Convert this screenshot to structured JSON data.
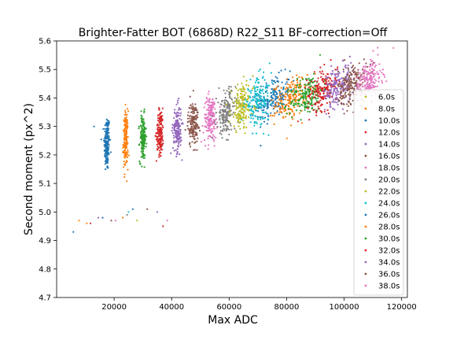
{
  "chart_data": {
    "type": "scatter",
    "title": "Brighter-Fatter BOT (6868D) R22_S11 BF-correction=Off",
    "xlabel": "Max ADC",
    "ylabel": "Second moment (px^2)",
    "xlim": [
      0,
      122000
    ],
    "ylim": [
      4.7,
      5.6
    ],
    "xticks": [
      20000,
      40000,
      60000,
      80000,
      100000,
      120000
    ],
    "xtick_labels": [
      "20000",
      "40000",
      "60000",
      "80000",
      "100000",
      "120000"
    ],
    "yticks": [
      4.7,
      4.8,
      4.9,
      5.0,
      5.1,
      5.2,
      5.3,
      5.4,
      5.5,
      5.6
    ],
    "ytick_labels": [
      "4.7",
      "4.8",
      "4.9",
      "5.0",
      "5.1",
      "5.2",
      "5.3",
      "5.4",
      "5.5",
      "5.6"
    ],
    "grid": false,
    "legend_position": "right",
    "series": [
      {
        "name": "6.0s",
        "color": "#bcbd22",
        "clusters": [],
        "outliers": []
      },
      {
        "name": "8.0s",
        "color": "#ff7f0e",
        "clusters": [],
        "outliers": [
          [
            7800,
            4.97
          ],
          [
            10500,
            4.96
          ],
          [
            23000,
            4.98
          ]
        ]
      },
      {
        "name": "10.0s",
        "color": "#1f77b4",
        "clusters": [
          {
            "x": 17500,
            "xs": 700,
            "y": 5.24,
            "ys": 0.05,
            "n": 170
          }
        ],
        "outliers": [
          [
            5800,
            4.93
          ],
          [
            13000,
            5.3
          ],
          [
            16000,
            4.98
          ]
        ]
      },
      {
        "name": "12.0s",
        "color": "#d62728",
        "clusters": [],
        "outliers": [
          [
            11800,
            4.96
          ],
          [
            37000,
            4.95
          ]
        ]
      },
      {
        "name": "14.0s",
        "color": "#9467bd",
        "clusters": [],
        "outliers": [
          [
            14500,
            4.98
          ],
          [
            35000,
            5.0
          ]
        ]
      },
      {
        "name": "16.0s",
        "color": "#8c564b",
        "clusters": [],
        "outliers": [
          [
            19000,
            4.97
          ],
          [
            31500,
            5.01
          ]
        ]
      },
      {
        "name": "18.0s",
        "color": "#e377c2",
        "clusters": [],
        "outliers": [
          [
            20500,
            4.97
          ],
          [
            38500,
            4.97
          ]
        ]
      },
      {
        "name": "20.0s",
        "color": "#7f7f7f",
        "clusters": [],
        "outliers": [
          [
            24500,
            4.99
          ]
        ]
      },
      {
        "name": "22.0s",
        "color": "#bcbd22",
        "clusters": [],
        "outliers": [
          [
            28000,
            4.97
          ]
        ]
      },
      {
        "name": "24.0s",
        "color": "#17becf",
        "clusters": [],
        "outliers": [
          [
            25000,
            5.0
          ]
        ]
      },
      {
        "name": "26.0s",
        "color": "#1f77b4",
        "clusters": [
          {
            "x": 75500,
            "xs": 4200,
            "y": 5.4,
            "ys": 0.035,
            "n": 180
          }
        ],
        "outliers": [
          [
            26500,
            5.01
          ]
        ]
      },
      {
        "name": "28.0s",
        "color": "#ff7f0e",
        "clusters": [
          {
            "x": 24000,
            "xs": 600,
            "y": 5.25,
            "ys": 0.05,
            "n": 160
          },
          {
            "x": 81500,
            "xs": 4000,
            "y": 5.4,
            "ys": 0.035,
            "n": 180
          }
        ],
        "outliers": []
      },
      {
        "name": "30.0s",
        "color": "#2ca02c",
        "clusters": [
          {
            "x": 30000,
            "xs": 800,
            "y": 5.26,
            "ys": 0.04,
            "n": 160
          },
          {
            "x": 87000,
            "xs": 4000,
            "y": 5.41,
            "ys": 0.035,
            "n": 180
          }
        ],
        "outliers": []
      },
      {
        "name": "32.0s",
        "color": "#d62728",
        "clusters": [
          {
            "x": 36000,
            "xs": 900,
            "y": 5.28,
            "ys": 0.04,
            "n": 160
          },
          {
            "x": 92500,
            "xs": 3800,
            "y": 5.43,
            "ys": 0.035,
            "n": 180
          }
        ],
        "outliers": []
      },
      {
        "name": "34.0s",
        "color": "#9467bd",
        "clusters": [
          {
            "x": 42000,
            "xs": 1100,
            "y": 5.29,
            "ys": 0.04,
            "n": 160
          },
          {
            "x": 98000,
            "xs": 3800,
            "y": 5.44,
            "ys": 0.035,
            "n": 180
          }
        ],
        "outliers": []
      },
      {
        "name": "36.0s",
        "color": "#8c564b",
        "clusters": [
          {
            "x": 47500,
            "xs": 1300,
            "y": 5.31,
            "ys": 0.04,
            "n": 160
          },
          {
            "x": 103000,
            "xs": 3600,
            "y": 5.45,
            "ys": 0.035,
            "n": 180
          }
        ],
        "outliers": []
      },
      {
        "name": "38.0s",
        "color": "#e377c2",
        "clusters": [
          {
            "x": 53500,
            "xs": 1700,
            "y": 5.33,
            "ys": 0.04,
            "n": 170
          },
          {
            "x": 108500,
            "xs": 3400,
            "y": 5.46,
            "ys": 0.035,
            "n": 180
          }
        ],
        "outliers": []
      },
      {
        "name": "",
        "color": "#7f7f7f",
        "clusters": [
          {
            "x": 59000,
            "xs": 2300,
            "y": 5.35,
            "ys": 0.04,
            "n": 170
          }
        ],
        "outliers": []
      },
      {
        "name": "",
        "color": "#bcbd22",
        "clusters": [
          {
            "x": 64500,
            "xs": 2800,
            "y": 5.37,
            "ys": 0.04,
            "n": 170
          }
        ],
        "outliers": []
      },
      {
        "name": "",
        "color": "#17becf",
        "clusters": [
          {
            "x": 70000,
            "xs": 3200,
            "y": 5.39,
            "ys": 0.04,
            "n": 170
          }
        ],
        "outliers": []
      }
    ]
  }
}
